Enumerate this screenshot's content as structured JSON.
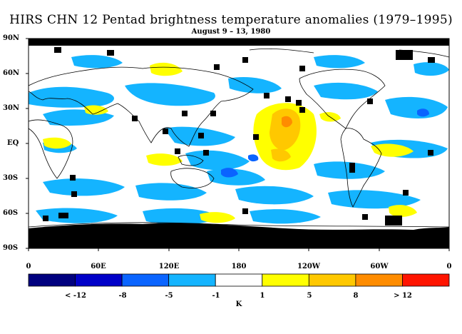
{
  "title": "HIRS CHN 12 Pentad brightness temperature anomalies (1979–1995)",
  "subtitle": "August 9 – 13, 1980",
  "lat_labels": [
    "90N",
    "60N",
    "30N",
    "EQ",
    "30S",
    "60S",
    "90S"
  ],
  "lon_labels": [
    "0",
    "60E",
    "120E",
    "180",
    "120W",
    "60W",
    "0"
  ],
  "colorbar": {
    "colors": [
      "#00007f",
      "#0000c8",
      "#0a64ff",
      "#14b4ff",
      "#ffffff",
      "#ffff00",
      "#ffc800",
      "#ff8c00",
      "#ff1400"
    ],
    "tick_labels": [
      "< -12",
      "-8",
      "-5",
      "-1",
      "1",
      "5",
      "8",
      "> 12"
    ],
    "unit": "K"
  },
  "map_colors": {
    "land_outline": "#000000",
    "missing": "#000000"
  }
}
